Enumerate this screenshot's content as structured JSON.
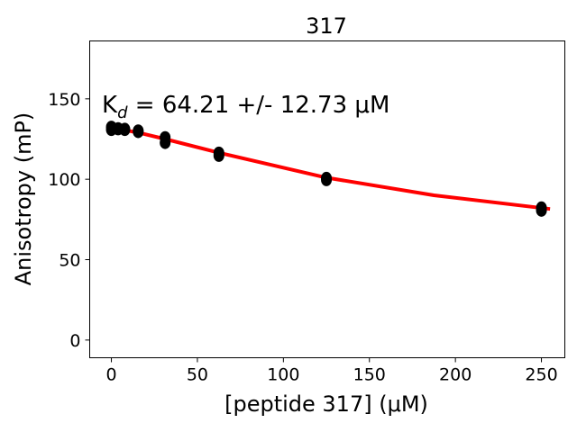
{
  "chart_data": {
    "type": "scatter",
    "title": "317",
    "xlabel": "[peptide 317] (μM)",
    "ylabel": "Anisotropy (mP)",
    "annotation": {
      "k": "K",
      "sub": "d",
      "rest": " = 64.21 +/- 12.73 μM"
    },
    "xlim": [
      -12.6,
      263.6
    ],
    "ylim": [
      -11,
      186
    ],
    "xticks": [
      0,
      50,
      100,
      150,
      200,
      250
    ],
    "yticks": [
      0,
      50,
      100,
      150
    ],
    "grid": false,
    "points": {
      "x": [
        0,
        0,
        3.9,
        3.9,
        7.8,
        7.8,
        15.6,
        15.6,
        31.25,
        31.25,
        62.5,
        62.5,
        125,
        125,
        250,
        250
      ],
      "y": [
        130.8,
        132.5,
        131.2,
        131.6,
        130.8,
        131.2,
        129.5,
        130.2,
        122.7,
        126,
        114.7,
        116.4,
        99.6,
        100.7,
        80.6,
        82.3
      ]
    },
    "fit": {
      "x": [
        0,
        15.6,
        31.25,
        62.5,
        125,
        187.5,
        255
      ],
      "y": [
        132,
        129,
        125,
        116.5,
        101,
        90,
        81.5
      ]
    },
    "colors": {
      "points": "#000000",
      "fit": "#ff0000"
    }
  }
}
